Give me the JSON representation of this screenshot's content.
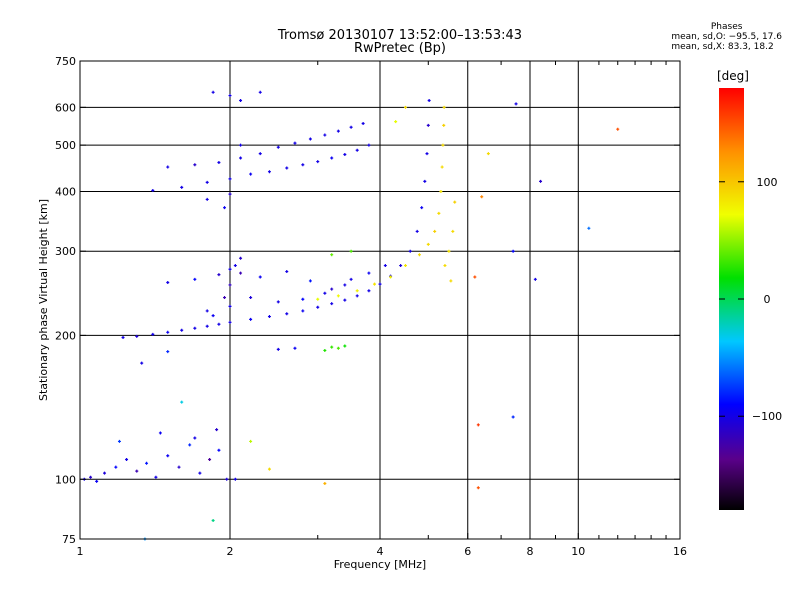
{
  "title_line1": "Tromsø 20130107 13:52:00–13:53:43",
  "title_line2": "RwPretec (Bp)",
  "phases": {
    "header": "Phases",
    "o_stats": "mean, sd,O: −95.5, 17.6",
    "x_stats": "mean, sd,X: 83.3, 18.2"
  },
  "colorbar": {
    "label": "[deg]",
    "ticks": [
      {
        "value": 100,
        "label": "100"
      },
      {
        "value": 0,
        "label": "0"
      },
      {
        "value": -100,
        "label": "−100"
      }
    ],
    "range": [
      -180,
      180
    ]
  },
  "chart_data": {
    "type": "scatter",
    "xlabel": "Frequency [MHz]",
    "ylabel": "Stationary phase Virtual Height [km]",
    "xscale": "log",
    "yscale": "log",
    "xlim": [
      1,
      16
    ],
    "ylim": [
      75,
      750
    ],
    "xticks": [
      {
        "value": 1,
        "label": "1"
      },
      {
        "value": 2,
        "label": "2"
      },
      {
        "value": 4,
        "label": "4"
      },
      {
        "value": 6,
        "label": "6"
      },
      {
        "value": 8,
        "label": "8"
      },
      {
        "value": 10,
        "label": "10"
      },
      {
        "value": 16,
        "label": "16"
      }
    ],
    "yticks": [
      {
        "value": 75,
        "label": "75"
      },
      {
        "value": 100,
        "label": "100"
      },
      {
        "value": 200,
        "label": "200"
      },
      {
        "value": 300,
        "label": "300"
      },
      {
        "value": 400,
        "label": "400"
      },
      {
        "value": 500,
        "label": "500"
      },
      {
        "value": 600,
        "label": "600"
      },
      {
        "value": 750,
        "label": "750"
      }
    ],
    "grid_x": [
      2,
      4,
      6,
      8,
      10
    ],
    "grid_y": [
      100,
      200,
      300,
      400,
      500,
      600
    ],
    "color_encoding": "phase_deg",
    "points": [
      [
        1.02,
        100,
        -100
      ],
      [
        1.05,
        101,
        -110
      ],
      [
        1.08,
        99,
        -95
      ],
      [
        1.12,
        103,
        -105
      ],
      [
        1.18,
        106,
        -90
      ],
      [
        1.24,
        110,
        -100
      ],
      [
        1.3,
        104,
        -120
      ],
      [
        1.36,
        108,
        -85
      ],
      [
        1.42,
        101,
        -100
      ],
      [
        1.5,
        112,
        -95
      ],
      [
        1.58,
        106,
        -110
      ],
      [
        1.66,
        118,
        -80
      ],
      [
        1.74,
        103,
        -100
      ],
      [
        1.82,
        110,
        -130
      ],
      [
        1.9,
        115,
        -90
      ],
      [
        1.97,
        100,
        -105
      ],
      [
        1.2,
        120,
        -75
      ],
      [
        1.45,
        125,
        -95
      ],
      [
        1.7,
        122,
        -100
      ],
      [
        1.88,
        127,
        -110
      ],
      [
        2.05,
        100,
        -100
      ],
      [
        1.33,
        175,
        -100
      ],
      [
        1.5,
        185,
        -80
      ],
      [
        1.6,
        145,
        -30
      ],
      [
        1.85,
        82,
        -10
      ],
      [
        1.35,
        75,
        -50
      ],
      [
        1.22,
        198,
        -100
      ],
      [
        1.3,
        199,
        -105
      ],
      [
        1.4,
        201,
        -100
      ],
      [
        1.5,
        203,
        -95
      ],
      [
        1.6,
        205,
        -100
      ],
      [
        1.7,
        207,
        -100
      ],
      [
        1.8,
        209,
        -100
      ],
      [
        1.9,
        211,
        -100
      ],
      [
        2.0,
        213,
        -100
      ],
      [
        2.2,
        216,
        -95
      ],
      [
        2.4,
        219,
        -100
      ],
      [
        2.6,
        222,
        -100
      ],
      [
        2.8,
        225,
        -95
      ],
      [
        3.0,
        229,
        -100
      ],
      [
        3.2,
        233,
        -100
      ],
      [
        3.4,
        237,
        -100
      ],
      [
        3.6,
        242,
        -100
      ],
      [
        3.8,
        248,
        -100
      ],
      [
        4.0,
        256,
        -100
      ],
      [
        4.2,
        266,
        -100
      ],
      [
        4.4,
        280,
        -105
      ],
      [
        4.6,
        300,
        -100
      ],
      [
        4.75,
        330,
        -100
      ],
      [
        4.85,
        370,
        -95
      ],
      [
        4.92,
        420,
        -100
      ],
      [
        4.97,
        480,
        -100
      ],
      [
        5.0,
        550,
        -110
      ],
      [
        5.02,
        620,
        -100
      ],
      [
        1.5,
        258,
        -100
      ],
      [
        1.7,
        262,
        -90
      ],
      [
        1.9,
        268,
        -110
      ],
      [
        2.0,
        275,
        -100
      ],
      [
        2.1,
        270,
        -120
      ],
      [
        2.3,
        265,
        -95
      ],
      [
        2.6,
        272,
        -100
      ],
      [
        2.9,
        260,
        -85
      ],
      [
        3.2,
        250,
        -110
      ],
      [
        3.5,
        262,
        -100
      ],
      [
        3.8,
        270,
        -95
      ],
      [
        4.1,
        280,
        -100
      ],
      [
        1.8,
        225,
        -100
      ],
      [
        2.0,
        230,
        -100
      ],
      [
        2.2,
        240,
        -105
      ],
      [
        2.5,
        235,
        -100
      ],
      [
        2.8,
        238,
        -90
      ],
      [
        3.1,
        245,
        -100
      ],
      [
        3.4,
        255,
        -100
      ],
      [
        2.0,
        255,
        -115
      ],
      [
        2.05,
        280,
        -100
      ],
      [
        1.95,
        240,
        -120
      ],
      [
        2.1,
        290,
        -110
      ],
      [
        1.85,
        220,
        -95
      ],
      [
        2.5,
        187,
        -100
      ],
      [
        2.7,
        188,
        -95
      ],
      [
        3.2,
        189,
        30
      ],
      [
        3.4,
        190,
        20
      ],
      [
        3.1,
        186,
        25
      ],
      [
        3.3,
        188,
        35
      ],
      [
        1.4,
        402,
        -100
      ],
      [
        1.6,
        408,
        -100
      ],
      [
        1.8,
        418,
        -100
      ],
      [
        2.0,
        425,
        -100
      ],
      [
        2.2,
        435,
        -95
      ],
      [
        2.4,
        440,
        -100
      ],
      [
        2.6,
        448,
        -100
      ],
      [
        2.8,
        455,
        -100
      ],
      [
        3.0,
        462,
        -100
      ],
      [
        3.2,
        470,
        -95
      ],
      [
        3.4,
        478,
        -100
      ],
      [
        3.6,
        488,
        -100
      ],
      [
        3.8,
        500,
        -100
      ],
      [
        1.5,
        450,
        -100
      ],
      [
        1.7,
        455,
        -110
      ],
      [
        1.9,
        460,
        -100
      ],
      [
        2.1,
        470,
        -100
      ],
      [
        2.3,
        480,
        -100
      ],
      [
        2.5,
        495,
        -100
      ],
      [
        2.7,
        505,
        -100
      ],
      [
        2.9,
        515,
        -100
      ],
      [
        3.1,
        525,
        -100
      ],
      [
        3.3,
        535,
        -100
      ],
      [
        3.5,
        545,
        -100
      ],
      [
        3.7,
        555,
        -100
      ],
      [
        1.8,
        385,
        -100
      ],
      [
        1.95,
        370,
        -95
      ],
      [
        2.0,
        395,
        -110
      ],
      [
        2.1,
        500,
        -100
      ],
      [
        1.85,
        645,
        -100
      ],
      [
        2.0,
        635,
        -100
      ],
      [
        2.1,
        620,
        -100
      ],
      [
        2.3,
        645,
        -100
      ],
      [
        3.0,
        238,
        70
      ],
      [
        3.3,
        242,
        75
      ],
      [
        3.6,
        248,
        80
      ],
      [
        3.9,
        256,
        85
      ],
      [
        4.2,
        265,
        80
      ],
      [
        4.5,
        280,
        85
      ],
      [
        4.8,
        295,
        90
      ],
      [
        5.0,
        310,
        90
      ],
      [
        5.15,
        330,
        95
      ],
      [
        5.25,
        360,
        90
      ],
      [
        5.3,
        400,
        85
      ],
      [
        5.33,
        450,
        90
      ],
      [
        5.35,
        500,
        90
      ],
      [
        5.37,
        550,
        95
      ],
      [
        5.38,
        600,
        90
      ],
      [
        5.5,
        300,
        85
      ],
      [
        5.6,
        330,
        90
      ],
      [
        5.65,
        380,
        95
      ],
      [
        5.55,
        260,
        90
      ],
      [
        5.4,
        280,
        90
      ],
      [
        3.2,
        295,
        40
      ],
      [
        3.5,
        300,
        35
      ],
      [
        4.3,
        560,
        70
      ],
      [
        4.5,
        600,
        90
      ],
      [
        2.4,
        105,
        90
      ],
      [
        3.1,
        98,
        110
      ],
      [
        2.2,
        120,
        60
      ],
      [
        6.2,
        265,
        150
      ],
      [
        6.3,
        130,
        160
      ],
      [
        6.3,
        96,
        150
      ],
      [
        6.4,
        390,
        130
      ],
      [
        7.4,
        300,
        -90
      ],
      [
        7.4,
        135,
        -80
      ],
      [
        7.5,
        610,
        -100
      ],
      [
        8.4,
        420,
        -110
      ],
      [
        8.2,
        262,
        -100
      ],
      [
        12.0,
        540,
        150
      ],
      [
        10.5,
        335,
        -60
      ],
      [
        6.6,
        480,
        90
      ]
    ]
  }
}
